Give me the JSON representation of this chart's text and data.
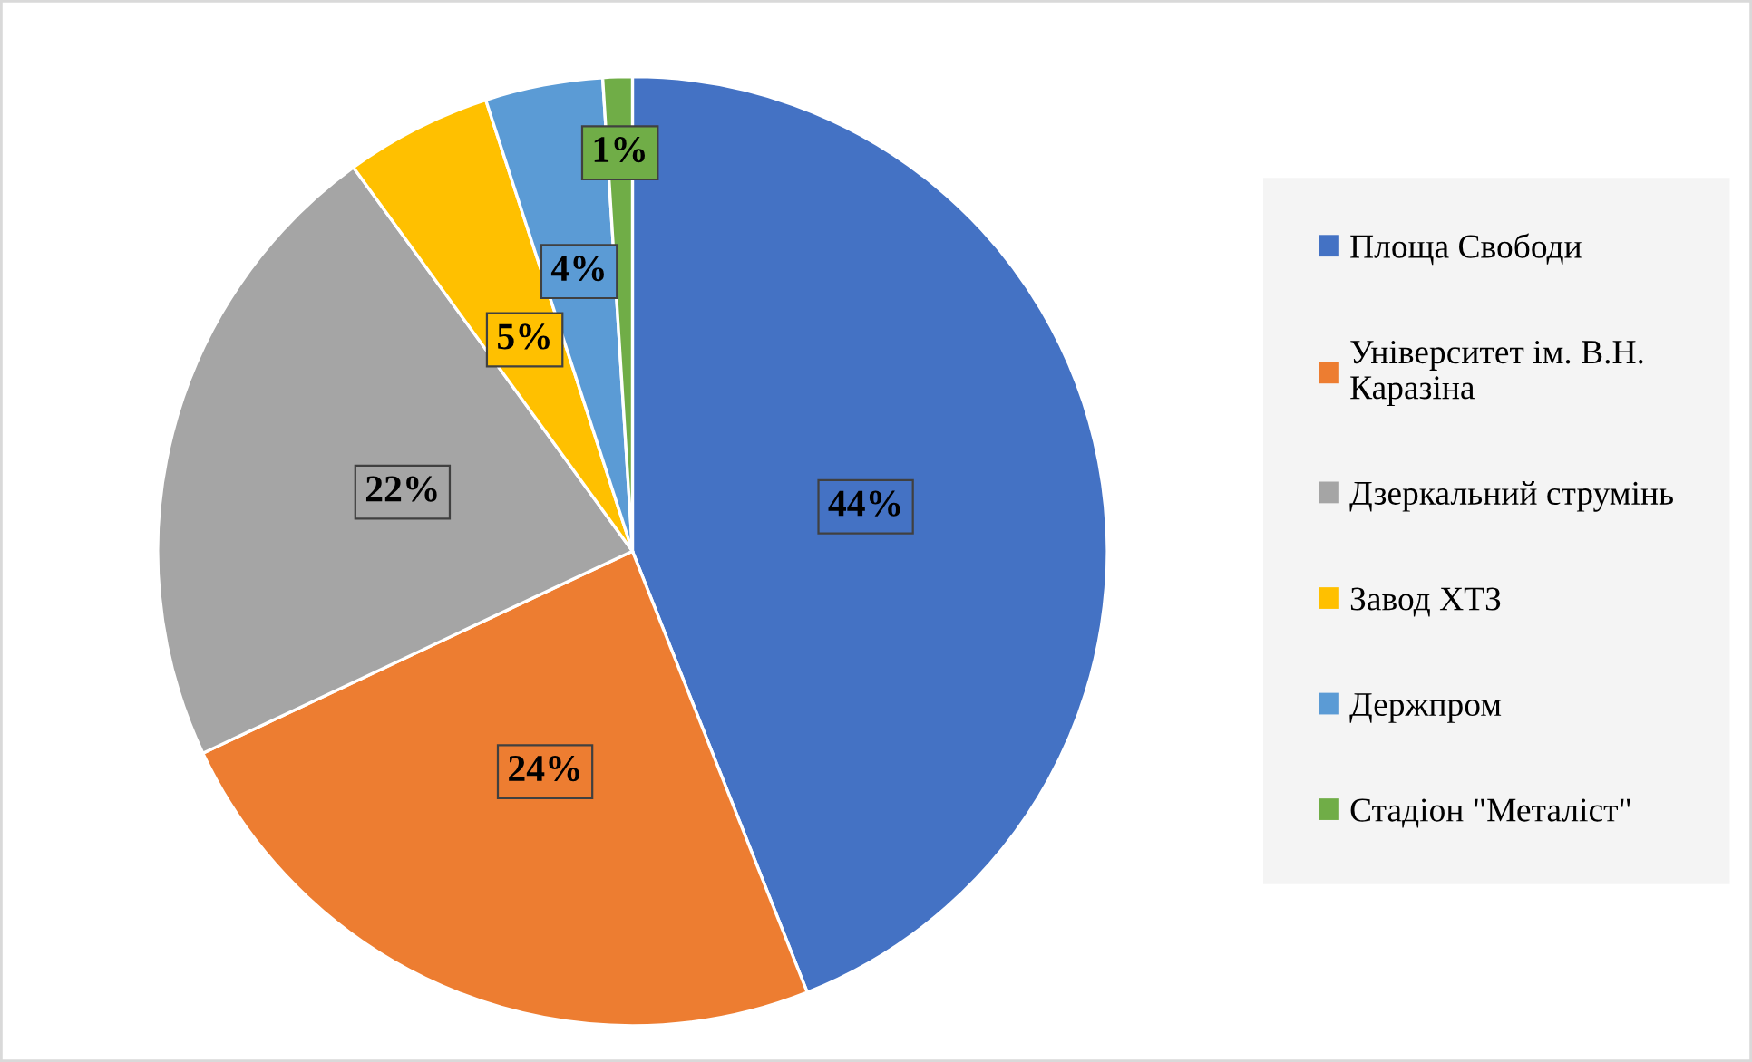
{
  "chart_data": {
    "type": "pie",
    "categories": [
      "Площа Свободи",
      "Університет ім. В.Н. Каразіна",
      "Дзеркальний струмінь",
      "Завод ХТЗ",
      "Держпром",
      "Стадіон \"Металіст\""
    ],
    "values": [
      44,
      24,
      22,
      5,
      4,
      1
    ],
    "colors": [
      "#4472c4",
      "#ed7d31",
      "#a5a5a5",
      "#ffc000",
      "#5b9bd5",
      "#70ad47"
    ],
    "value_labels": [
      "44%",
      "24%",
      "22%",
      "5%",
      "4%",
      "1%"
    ],
    "legend": "right"
  }
}
